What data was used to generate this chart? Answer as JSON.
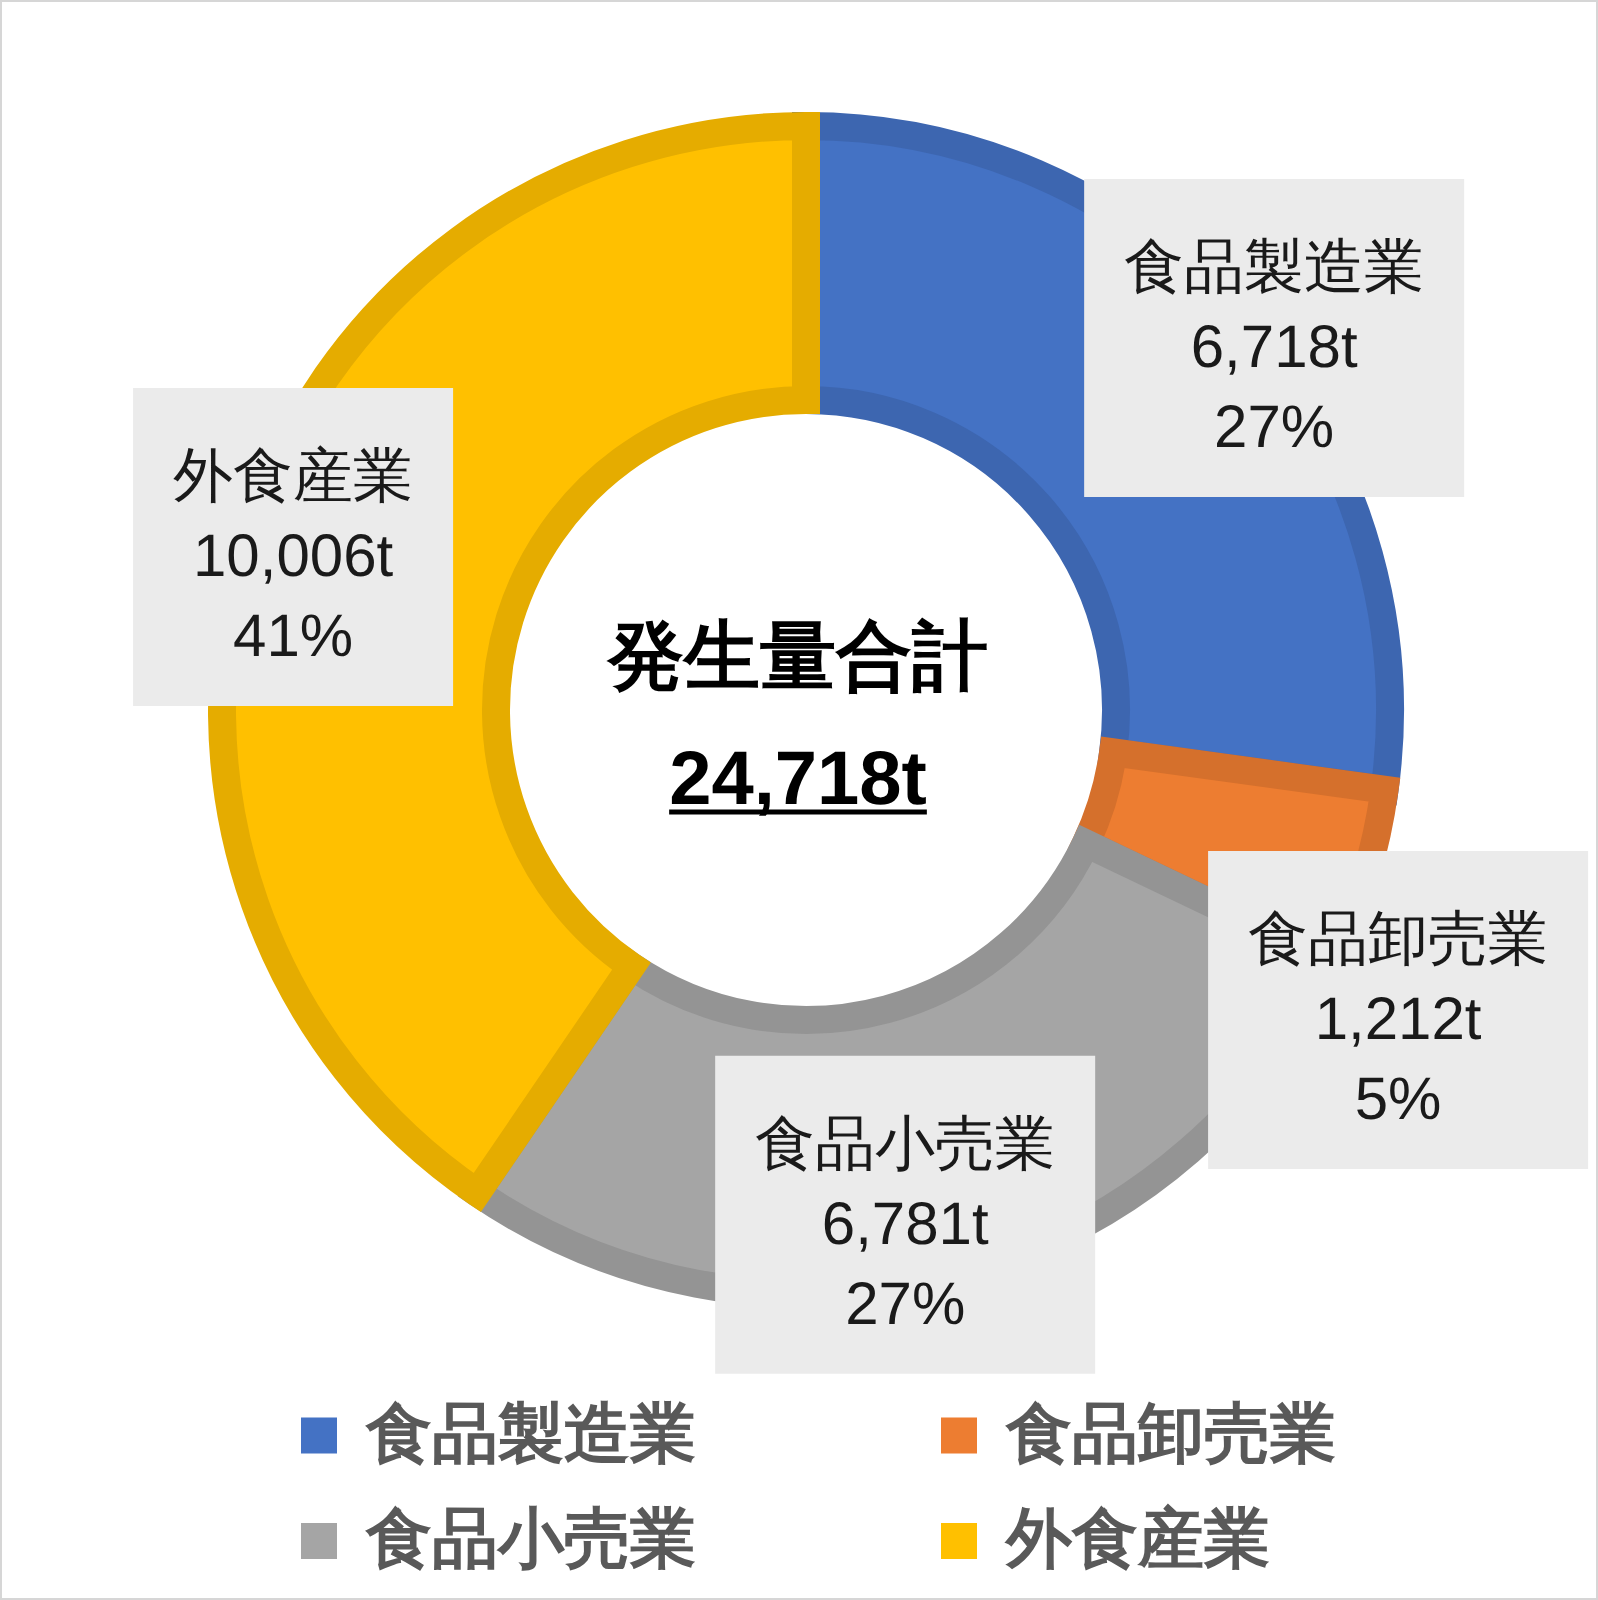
{
  "chart_data": {
    "type": "donut",
    "categories": [
      "食品製造業",
      "食品卸売業",
      "食品小売業",
      "外食産業"
    ],
    "values": [
      6718,
      1212,
      6781,
      10006
    ],
    "colors": [
      "#4472c4",
      "#ed7d31",
      "#a5a5a5",
      "#ffc000"
    ],
    "value_labels": [
      "6,718t",
      "1,212t",
      "6,781t",
      "10,006t"
    ],
    "annotations": [
      "発生量合計",
      "24,718t",
      {
        "text": "27%",
        "x": "食品製造業"
      },
      {
        "text": "5%",
        "x": "食品卸売業"
      },
      {
        "text": "27%",
        "x": "食品小売業"
      },
      {
        "text": "41%",
        "x": "外食産業"
      }
    ],
    "legend": "bottom"
  }
}
